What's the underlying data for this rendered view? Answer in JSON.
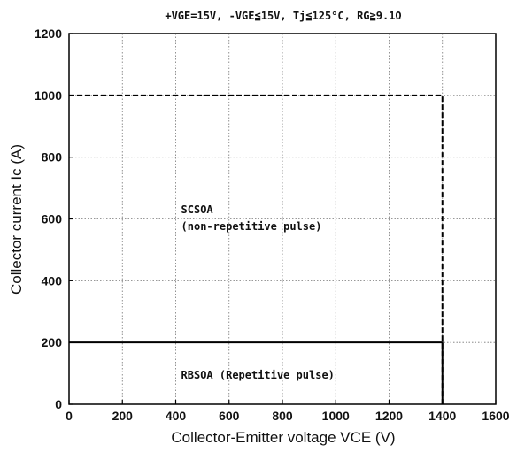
{
  "chart_data": {
    "type": "line",
    "conditions": "+VGE=15V, -VGE≦15V, Tj≦125°C, RG≧9.1Ω",
    "xlabel": "Collector-Emitter voltage    VCE (V)",
    "ylabel": "Collector current    Ic (A)",
    "xlim": [
      0,
      1600
    ],
    "ylim": [
      0,
      1200
    ],
    "xticks": [
      "0",
      "200",
      "400",
      "600",
      "800",
      "1000",
      "1200",
      "1400",
      "1600"
    ],
    "yticks": [
      "0",
      "200",
      "400",
      "600",
      "800",
      "1000",
      "1200"
    ],
    "grid": true,
    "series": [
      {
        "style": "dashed",
        "x": [
          0,
          1400,
          1400
        ],
        "y": [
          1000,
          1000,
          0
        ]
      },
      {
        "style": "solid",
        "x": [
          0,
          1400,
          1400
        ],
        "y": [
          200,
          200,
          0
        ]
      }
    ],
    "annotations": [
      {
        "text": "SCSOA",
        "x": 420,
        "y": 630
      },
      {
        "text": "(non-repetitive pulse)",
        "x": 420,
        "y": 575
      },
      {
        "text": "RBSOA (Repetitive pulse)",
        "x": 420,
        "y": 95
      }
    ]
  }
}
